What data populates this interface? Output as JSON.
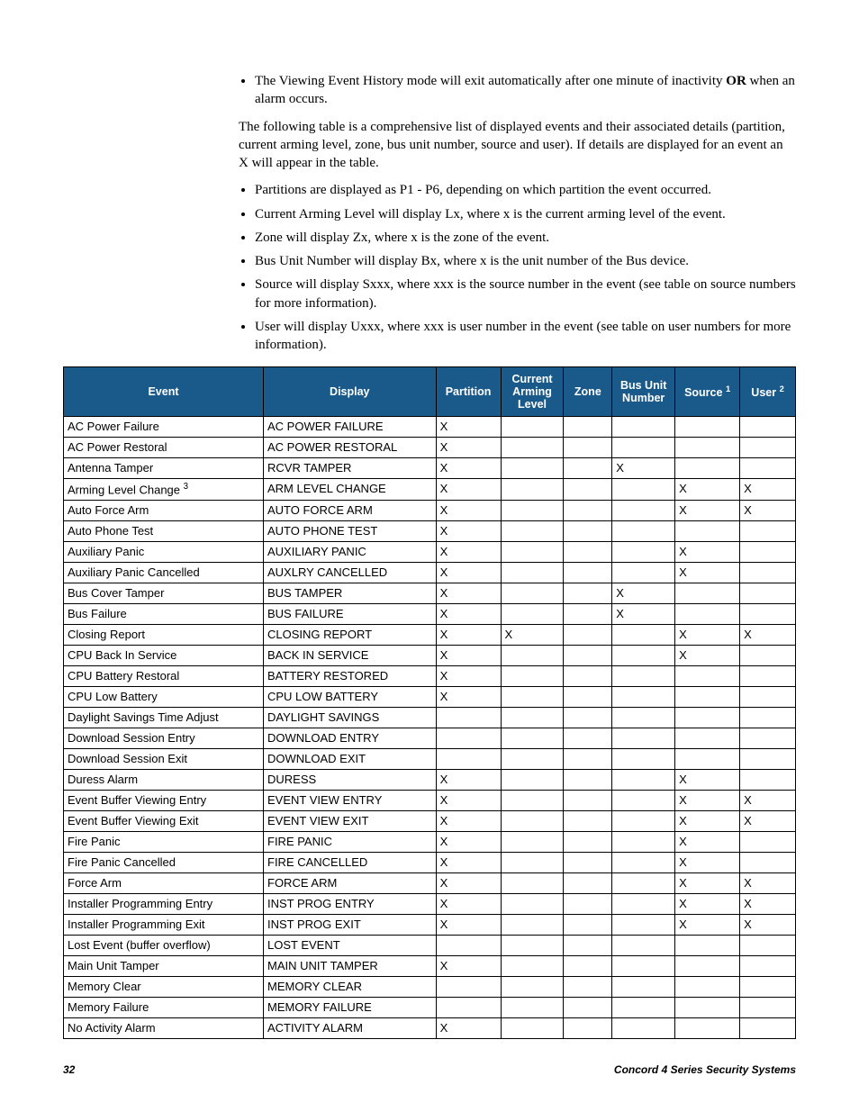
{
  "intro": {
    "bullet_top": "The Viewing Event History mode will exit automatically after one minute of inactivity OR when an alarm occurs.",
    "paragraph": "The following table is a comprehensive list of displayed events and their associated details (partition, current arming level, zone, bus unit number, source and user). If details are displayed for an event an X will appear in the table.",
    "bullets": [
      "Partitions are displayed as P1 - P6, depending on which partition the event occurred.",
      "Current Arming Level will display Lx, where x is the current arming level of the event.",
      "Zone will display Zx, where x is the zone of the event.",
      "Bus Unit Number will display Bx, where x is the unit number of the Bus device.",
      "Source will display Sxxx, where xxx is the source number in the event (see table on source numbers for more information).",
      "User will display Uxxx, where xxx is user number in the event (see table on user numbers for more information)."
    ]
  },
  "table": {
    "headers": {
      "event": "Event",
      "display": "Display",
      "partition": "Partition",
      "arming": "Current Arming Level",
      "zone": "Zone",
      "bus": "Bus Unit Number",
      "source": "Source",
      "source_sup": "1",
      "user": "User",
      "user_sup": "2"
    },
    "rows": [
      {
        "event": "AC Power Failure",
        "display": "AC POWER FAILURE",
        "partition": "X",
        "arming": "",
        "zone": "",
        "bus": "",
        "source": "",
        "user": ""
      },
      {
        "event": "AC Power Restoral",
        "display": "AC POWER RESTORAL",
        "partition": "X",
        "arming": "",
        "zone": "",
        "bus": "",
        "source": "",
        "user": ""
      },
      {
        "event": "Antenna Tamper",
        "display": "RCVR TAMPER",
        "partition": "X",
        "arming": "",
        "zone": "",
        "bus": "X",
        "source": "",
        "user": ""
      },
      {
        "event": "Arming Level Change",
        "event_sup": "3",
        "display": "ARM LEVEL CHANGE",
        "partition": "X",
        "arming": "",
        "zone": "",
        "bus": "",
        "source": "X",
        "user": "X"
      },
      {
        "event": "Auto Force Arm",
        "display": "AUTO FORCE ARM",
        "partition": "X",
        "arming": "",
        "zone": "",
        "bus": "",
        "source": "X",
        "user": "X"
      },
      {
        "event": "Auto Phone Test",
        "display": "AUTO PHONE TEST",
        "partition": "X",
        "arming": "",
        "zone": "",
        "bus": "",
        "source": "",
        "user": ""
      },
      {
        "event": "Auxiliary Panic",
        "display": "AUXILIARY PANIC",
        "partition": "X",
        "arming": "",
        "zone": "",
        "bus": "",
        "source": "X",
        "user": ""
      },
      {
        "event": "Auxiliary Panic Cancelled",
        "display": "AUXLRY CANCELLED",
        "partition": "X",
        "arming": "",
        "zone": "",
        "bus": "",
        "source": "X",
        "user": ""
      },
      {
        "event": "Bus Cover Tamper",
        "display": "BUS TAMPER",
        "partition": "X",
        "arming": "",
        "zone": "",
        "bus": "X",
        "source": "",
        "user": ""
      },
      {
        "event": "Bus Failure",
        "display": "BUS FAILURE",
        "partition": "X",
        "arming": "",
        "zone": "",
        "bus": "X",
        "source": "",
        "user": ""
      },
      {
        "event": "Closing Report",
        "display": "CLOSING REPORT",
        "partition": "X",
        "arming": "X",
        "zone": "",
        "bus": "",
        "source": "X",
        "user": "X"
      },
      {
        "event": "CPU Back In Service",
        "display": "BACK IN SERVICE",
        "partition": "X",
        "arming": "",
        "zone": "",
        "bus": "",
        "source": "X",
        "user": ""
      },
      {
        "event": "CPU Battery Restoral",
        "display": "BATTERY RESTORED",
        "partition": "X",
        "arming": "",
        "zone": "",
        "bus": "",
        "source": "",
        "user": ""
      },
      {
        "event": "CPU Low Battery",
        "display": "CPU LOW BATTERY",
        "partition": "X",
        "arming": "",
        "zone": "",
        "bus": "",
        "source": "",
        "user": ""
      },
      {
        "event": "Daylight Savings Time Adjust",
        "display": "DAYLIGHT SAVINGS",
        "partition": "",
        "arming": "",
        "zone": "",
        "bus": "",
        "source": "",
        "user": ""
      },
      {
        "event": "Download Session Entry",
        "display": "DOWNLOAD ENTRY",
        "partition": "",
        "arming": "",
        "zone": "",
        "bus": "",
        "source": "",
        "user": ""
      },
      {
        "event": "Download Session Exit",
        "display": "DOWNLOAD EXIT",
        "partition": "",
        "arming": "",
        "zone": "",
        "bus": "",
        "source": "",
        "user": ""
      },
      {
        "event": "Duress Alarm",
        "display": "DURESS",
        "partition": "X",
        "arming": "",
        "zone": "",
        "bus": "",
        "source": "X",
        "user": ""
      },
      {
        "event": "Event Buffer Viewing Entry",
        "display": "EVENT VIEW ENTRY",
        "partition": "X",
        "arming": "",
        "zone": "",
        "bus": "",
        "source": "X",
        "user": "X"
      },
      {
        "event": "Event Buffer Viewing Exit",
        "display": "EVENT VIEW EXIT",
        "partition": "X",
        "arming": "",
        "zone": "",
        "bus": "",
        "source": "X",
        "user": "X"
      },
      {
        "event": "Fire Panic",
        "display": "FIRE PANIC",
        "partition": "X",
        "arming": "",
        "zone": "",
        "bus": "",
        "source": "X",
        "user": ""
      },
      {
        "event": "Fire Panic Cancelled",
        "display": "FIRE CANCELLED",
        "partition": "X",
        "arming": "",
        "zone": "",
        "bus": "",
        "source": "X",
        "user": ""
      },
      {
        "event": "Force Arm",
        "display": "FORCE ARM",
        "partition": "X",
        "arming": "",
        "zone": "",
        "bus": "",
        "source": "X",
        "user": "X"
      },
      {
        "event": "Installer Programming Entry",
        "display": "INST PROG ENTRY",
        "partition": "X",
        "arming": "",
        "zone": "",
        "bus": "",
        "source": "X",
        "user": "X"
      },
      {
        "event": "Installer Programming Exit",
        "display": "INST PROG EXIT",
        "partition": "X",
        "arming": "",
        "zone": "",
        "bus": "",
        "source": "X",
        "user": "X"
      },
      {
        "event": "Lost Event (buffer overflow)",
        "display": "LOST EVENT",
        "partition": "",
        "arming": "",
        "zone": "",
        "bus": "",
        "source": "",
        "user": ""
      },
      {
        "event": "Main Unit Tamper",
        "display": "MAIN UNIT TAMPER",
        "partition": "X",
        "arming": "",
        "zone": "",
        "bus": "",
        "source": "",
        "user": ""
      },
      {
        "event": "Memory Clear",
        "display": "MEMORY CLEAR",
        "partition": "",
        "arming": "",
        "zone": "",
        "bus": "",
        "source": "",
        "user": ""
      },
      {
        "event": "Memory Failure",
        "display": "MEMORY FAILURE",
        "partition": "",
        "arming": "",
        "zone": "",
        "bus": "",
        "source": "",
        "user": ""
      },
      {
        "event": "No Activity Alarm",
        "display": "ACTIVITY ALARM",
        "partition": "X",
        "arming": "",
        "zone": "",
        "bus": "",
        "source": "",
        "user": ""
      }
    ]
  },
  "footer": {
    "page_number": "32",
    "title": "Concord  4 Series Security Systems"
  },
  "colors": {
    "header_bg": "#1a5a8a",
    "header_fg": "#ffffff",
    "border": "#000000",
    "page_bg": "#ffffff"
  }
}
